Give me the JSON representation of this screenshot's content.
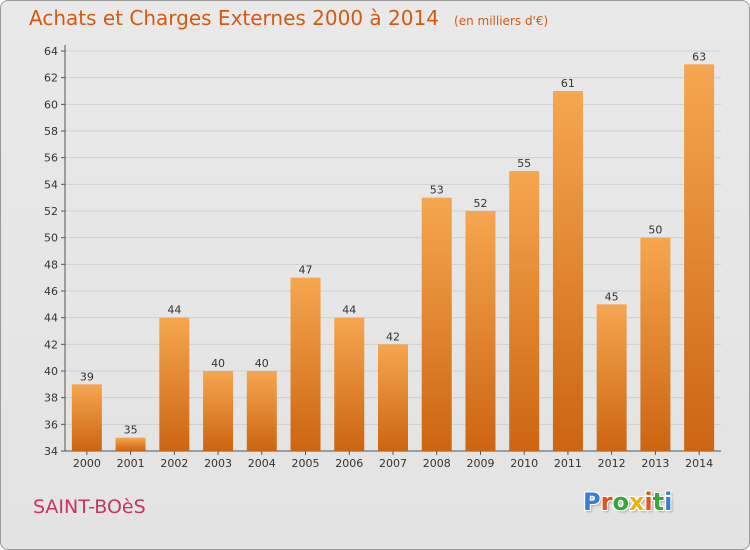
{
  "header": {
    "title": "Achats et Charges Externes 2000 à 2014",
    "unit": "(en milliers d'€)"
  },
  "commune": "SAINT-BOèS",
  "logo": {
    "text": "Proxiti",
    "letter_colors": [
      "#3a7fd0",
      "#e5531a",
      "#3aa63a",
      "#e8b21a",
      "#e5531a",
      "#3aa63a",
      "#3a7fd0"
    ]
  },
  "colors": {
    "bar_light": "#f6a650",
    "bar_dark": "#cc6512",
    "title": "#d45a12",
    "commune": "#c8336a"
  },
  "chart_data": {
    "type": "bar",
    "title": "Achats et Charges Externes 2000 à 2014",
    "subtitle": "(en milliers d'€)",
    "xlabel": "",
    "ylabel": "",
    "categories": [
      "2000",
      "2001",
      "2002",
      "2003",
      "2004",
      "2005",
      "2006",
      "2007",
      "2008",
      "2009",
      "2010",
      "2011",
      "2012",
      "2013",
      "2014"
    ],
    "values": [
      39,
      35,
      44,
      40,
      40,
      47,
      44,
      42,
      53,
      52,
      55,
      61,
      45,
      50,
      63
    ],
    "ylim": [
      34,
      64
    ],
    "yticks": [
      34,
      36,
      38,
      40,
      42,
      44,
      46,
      48,
      50,
      52,
      54,
      56,
      58,
      60,
      62,
      64
    ],
    "grid": true,
    "legend": "none"
  }
}
